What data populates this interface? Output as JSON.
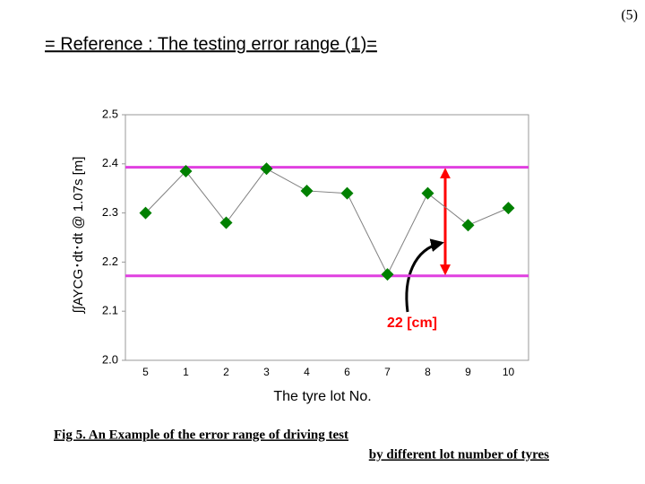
{
  "page_number": "(5)",
  "title": "= Reference : The testing error range (1)=",
  "chart_data": {
    "type": "line",
    "y_label": "∫∫AYCG･dt･dt @ 1.07s [m]",
    "x_label": "The tyre lot No.",
    "categories": [
      "5",
      "1",
      "2",
      "3",
      "4",
      "6",
      "7",
      "8",
      "9",
      "10"
    ],
    "series": [
      {
        "values": [
          2.3,
          2.385,
          2.28,
          2.39,
          2.345,
          2.34,
          2.175,
          2.34,
          2.275,
          2.31
        ],
        "color": "#808080",
        "marker_color": "#008000"
      }
    ],
    "ylim": [
      2.0,
      2.5
    ],
    "yticks": [
      {
        "value": 2.0,
        "label": "2.0"
      },
      2.1,
      2.2,
      2.3,
      2.4,
      2.5
    ],
    "reference_lines": [
      2.393,
      2.172
    ],
    "reference_color": "#e040e0",
    "range_color": "#ff0000",
    "annotation": "22 [cm]"
  },
  "caption": {
    "line1": "Fig 5.  An Example of the error range of driving test",
    "line2": "by different lot number of tyres"
  }
}
